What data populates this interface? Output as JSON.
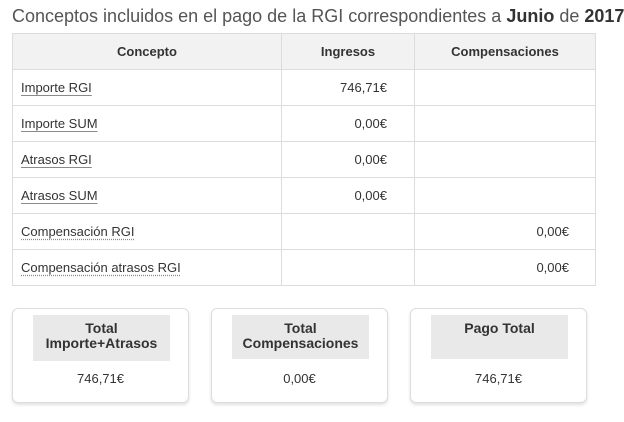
{
  "heading": {
    "prefix": "Conceptos incluidos en el pago de la RGI correspondientes a ",
    "month": "Junio",
    "connector": " de ",
    "year": "2017"
  },
  "table": {
    "headers": [
      "Concepto",
      "Ingresos",
      "Compensaciones"
    ],
    "rows": [
      {
        "concept": "Importe RGI",
        "ingresos": "746,71€",
        "compensaciones": ""
      },
      {
        "concept": "Importe SUM",
        "ingresos": "0,00€",
        "compensaciones": ""
      },
      {
        "concept": "Atrasos RGI",
        "ingresos": "0,00€",
        "compensaciones": ""
      },
      {
        "concept": "Atrasos SUM",
        "ingresos": "0,00€",
        "compensaciones": ""
      },
      {
        "concept": "Compensación RGI",
        "ingresos": "",
        "compensaciones": "0,00€"
      },
      {
        "concept": "Compensación atrasos RGI",
        "ingresos": "",
        "compensaciones": "0,00€"
      }
    ]
  },
  "summary": {
    "total": {
      "label_line1": "Total",
      "label_line2": "Importe+Atrasos",
      "value": "746,71€"
    },
    "compensaciones": {
      "label_line1": "Total",
      "label_line2": "Compensaciones",
      "value": "0,00€"
    },
    "pago": {
      "label": "Pago Total",
      "value": "746,71€"
    }
  }
}
